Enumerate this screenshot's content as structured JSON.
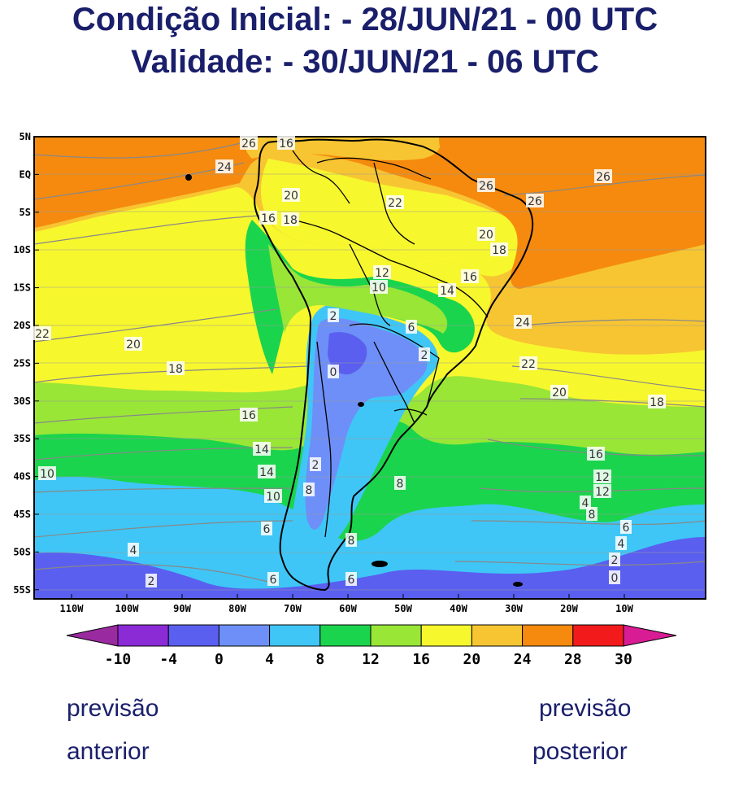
{
  "header": {
    "line1": "Condição Inicial: - 28/JUN/21 - 00 UTC",
    "line2": "Validade: - 30/JUN/21 - 06 UTC"
  },
  "map": {
    "lat_labels": [
      "5N",
      "EQ",
      "5S",
      "10S",
      "15S",
      "20S",
      "25S",
      "30S",
      "35S",
      "40S",
      "45S",
      "50S",
      "55S"
    ],
    "lon_labels": [
      "110W",
      "100W",
      "90W",
      "80W",
      "70W",
      "60W",
      "50W",
      "40W",
      "30W",
      "20W",
      "10W"
    ],
    "contour_labels": [
      "26",
      "16",
      "24",
      "26",
      "26",
      "20",
      "22",
      "26",
      "16",
      "18",
      "20",
      "18",
      "12",
      "10",
      "14",
      "16",
      "22",
      "2",
      "24",
      "6",
      "20",
      "18",
      "0",
      "2",
      "22",
      "20",
      "18",
      "16",
      "16",
      "14",
      "12",
      "14",
      "10",
      "12",
      "10",
      "4",
      "2",
      "8",
      "8",
      "6",
      "8",
      "4",
      "6",
      "2",
      "8",
      "6",
      "4",
      "2",
      "0",
      "6"
    ],
    "colorbar": {
      "labels": [
        "-10",
        "-4",
        "0",
        "4",
        "8",
        "12",
        "16",
        "20",
        "24",
        "28",
        "30"
      ],
      "colors": [
        "#8b2bd6",
        "#5a5ff0",
        "#6e8ff7",
        "#3fc6f6",
        "#1bd44d",
        "#99e637",
        "#f7f72d",
        "#f7c532",
        "#f58a0e",
        "#f21a1a"
      ],
      "min_color": "#9a2aa0",
      "max_color": "#d81c93"
    }
  },
  "nav": {
    "prev_line1": "previsão",
    "prev_line2": "anterior",
    "next_line1": "previsão",
    "next_line2": "posterior"
  }
}
